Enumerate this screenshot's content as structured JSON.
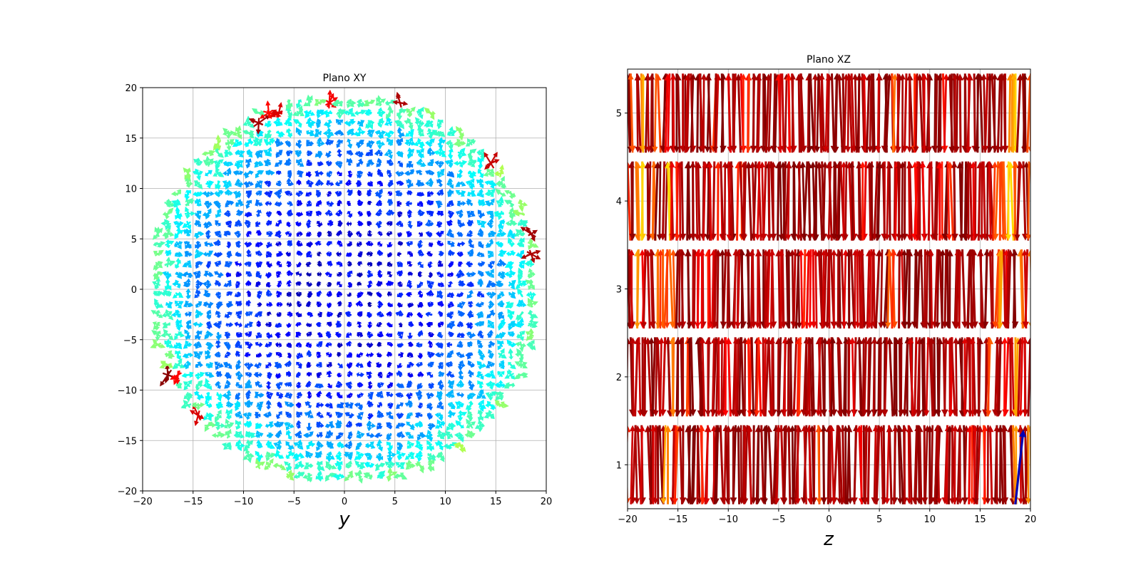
{
  "chart_data": [
    {
      "type": "quiver",
      "title": "Plano XY",
      "xlabel": "y",
      "ylabel": "",
      "xlim": [
        -20,
        20
      ],
      "ylim": [
        -20,
        20
      ],
      "xticks": [
        "−20",
        "−15",
        "−10",
        "−5",
        "0",
        "5",
        "10",
        "15",
        "20"
      ],
      "yticks": [
        "−20",
        "−15",
        "−10",
        "−5",
        "0",
        "5",
        "10",
        "15",
        "20"
      ],
      "grid": true,
      "colormap": "jet",
      "field": {
        "domain": "disk",
        "radius": 19.5,
        "grid_step": 1,
        "magnitude_center": 0.1,
        "magnitude_edge": 0.5,
        "note": "low-magnitude (blue) arrows in the interior, higher-magnitude (cyan/green/yellow) near the boundary, a few red outliers at the rim"
      }
    },
    {
      "type": "quiver",
      "title": "Plano XZ",
      "xlabel": "z",
      "ylabel": "",
      "xlim": [
        -20,
        20
      ],
      "ylim": [
        0.5,
        5.5
      ],
      "xticks": [
        "−20",
        "−15",
        "−10",
        "−5",
        "0",
        "5",
        "10",
        "15",
        "20"
      ],
      "yticks": [
        "1",
        "2",
        "3",
        "4",
        "5"
      ],
      "grid": true,
      "colormap": "jet",
      "field": {
        "layers": [
          1,
          2,
          3,
          4,
          5
        ],
        "layer_span": [
          -0.45,
          0.45
        ],
        "z_step": 0.5,
        "dominant_color": "dark red / red",
        "note": "arrows alternate up and down within each layer, mostly high magnitude (dark red), a few orange/yellow ones near z ≈ ±18, one dark-blue arrow near z ≈ 18.5 in layer 1"
      }
    }
  ]
}
